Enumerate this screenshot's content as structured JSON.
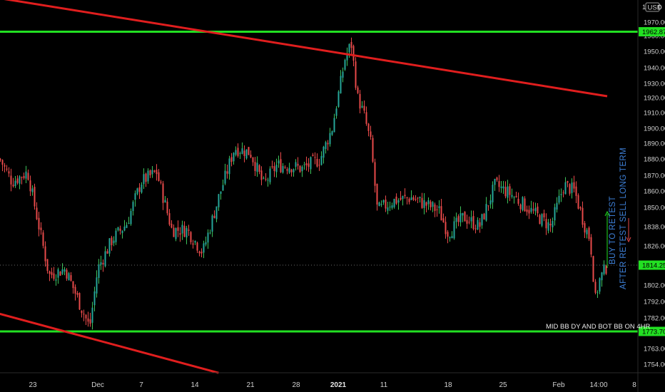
{
  "chart_data": {
    "type": "candlestick",
    "y_axis": {
      "position": "right",
      "ticks": [
        1970.0,
        1960.0,
        1950.0,
        1940.0,
        1930.0,
        1920.0,
        1910.0,
        1900.0,
        1890.0,
        1880.0,
        1870.0,
        1860.0,
        1850.0,
        1838.0,
        1826.0,
        1802.0,
        1792.0,
        1782.0,
        1763.0,
        1754.0
      ],
      "currency": "USD",
      "controls": [
        "1",
        "0"
      ]
    },
    "x_axis": {
      "ticks": [
        "23",
        "Dec",
        "7",
        "14",
        "21",
        "28",
        "2021",
        "11",
        "18",
        "25",
        "Feb",
        "14:00",
        "8"
      ],
      "bold_ticks": [
        "2021"
      ]
    },
    "price_tags": [
      {
        "label": "1962.87",
        "value": 1962.87,
        "color": "#22e022"
      },
      {
        "label": "1814.25",
        "value": 1814.25,
        "color": "#22e022"
      },
      {
        "label": "1773.70",
        "value": 1773.7,
        "color": "#22e022"
      }
    ],
    "horizontal_lines": [
      {
        "value": 1962.87,
        "color": "#22e022"
      },
      {
        "value": 1773.7,
        "color": "#22e022"
      }
    ],
    "trend_lines": [
      {
        "color": "#e01e1e",
        "points": [
          [
            "2020-11-16",
            1988
          ],
          [
            "2021-02-09",
            1921
          ]
        ]
      },
      {
        "color": "#e01e1e",
        "points": [
          [
            "2020-11-16",
            1785
          ],
          [
            "2020-12-17",
            1749
          ]
        ]
      }
    ],
    "last_price_line": {
      "value": 1814.25
    },
    "series": {
      "up_color": "#26a69a",
      "up_wick": "#3cc15a",
      "down_color": "#e84a4a",
      "anchors": [
        [
          "2020-11-16",
          1884
        ],
        [
          "2020-11-19",
          1866
        ],
        [
          "2020-11-22",
          1872
        ],
        [
          "2020-11-25",
          1808
        ],
        [
          "2020-11-27",
          1812
        ],
        [
          "2020-11-30",
          1776
        ],
        [
          "2020-12-01",
          1812
        ],
        [
          "2020-12-03",
          1830
        ],
        [
          "2020-12-05",
          1840
        ],
        [
          "2020-12-07",
          1866
        ],
        [
          "2020-12-09",
          1872
        ],
        [
          "2020-12-11",
          1836
        ],
        [
          "2020-12-13",
          1836
        ],
        [
          "2020-12-15",
          1822
        ],
        [
          "2020-12-17",
          1856
        ],
        [
          "2020-12-19",
          1887
        ],
        [
          "2020-12-21",
          1884
        ],
        [
          "2020-12-23",
          1864
        ],
        [
          "2020-12-25",
          1876
        ],
        [
          "2020-12-27",
          1876
        ],
        [
          "2020-12-29",
          1874
        ],
        [
          "2021-01-01",
          1880
        ],
        [
          "2021-01-03",
          1900
        ],
        [
          "2021-01-05",
          1945
        ],
        [
          "2021-01-06",
          1955
        ],
        [
          "2021-01-07",
          1920
        ],
        [
          "2021-01-08",
          1908
        ],
        [
          "2021-01-09",
          1890
        ],
        [
          "2021-01-10",
          1848
        ],
        [
          "2021-01-12",
          1854
        ],
        [
          "2021-01-14",
          1856
        ],
        [
          "2021-01-17",
          1848
        ],
        [
          "2021-01-18",
          1834
        ],
        [
          "2021-01-20",
          1844
        ],
        [
          "2021-01-22",
          1838
        ],
        [
          "2021-01-24",
          1864
        ],
        [
          "2021-01-26",
          1858
        ],
        [
          "2021-01-28",
          1850
        ],
        [
          "2021-01-31",
          1838
        ],
        [
          "2021-02-02",
          1864
        ],
        [
          "2021-02-04",
          1860
        ],
        [
          "2021-02-06",
          1838
        ],
        [
          "2021-02-07",
          1830
        ],
        [
          "2021-02-08",
          1792
        ],
        [
          "2021-02-08T14:00",
          1804
        ],
        [
          "2021-02-09",
          1814.25
        ]
      ]
    }
  },
  "annotations": {
    "buy": {
      "text": "BUY TO RETEST",
      "color": "#3d7fd6"
    },
    "sell": {
      "text": "AFTER RETEST SELL LONG TERM",
      "color": "#3d7fd6"
    },
    "note": {
      "text": "MID BB DY AND BOT BB ON 4HR",
      "color": "#e8e8e8"
    }
  }
}
